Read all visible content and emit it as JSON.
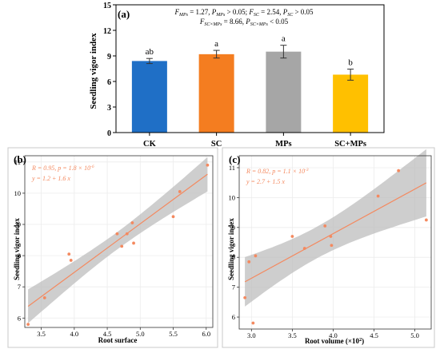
{
  "chart_data": [
    {
      "panel": "(a)",
      "type": "bar",
      "ylabel": "Seedling vigor index",
      "ylim": [
        0,
        15
      ],
      "yticks": [
        "0",
        "3",
        "6",
        "9",
        "12",
        "15"
      ],
      "categories": [
        "CK",
        "SC",
        "MPs",
        "SC+MPs"
      ],
      "values": [
        8.4,
        9.2,
        9.5,
        6.8
      ],
      "errors": [
        0.3,
        0.45,
        0.75,
        0.65
      ],
      "letters": [
        "ab",
        "a",
        "a",
        "b"
      ],
      "colors": [
        "#1f6fc6",
        "#f47d20",
        "#a6a6a6",
        "#ffc000"
      ],
      "stats_line1": "F_MPs = 1.27, P_MPs > 0.05; F_SC = 2.54, P_SC > 0.05",
      "stats_line2": "F_SC×MPs = 8.66, P_SC×MPs < 0.05"
    },
    {
      "panel": "(b)",
      "type": "scatter",
      "xlabel": "Root surface",
      "ylabel": "Seedling vigor index",
      "xlim": [
        3.25,
        6.1
      ],
      "ylim": [
        5.7,
        11.2
      ],
      "xticks": [
        "3.5",
        "4.0",
        "4.5",
        "5.0",
        "5.5",
        "6.0"
      ],
      "yticks": [
        "6",
        "7",
        "8",
        "9",
        "10",
        "11"
      ],
      "x": [
        3.3,
        3.55,
        3.92,
        3.95,
        4.65,
        4.72,
        4.8,
        4.88,
        4.9,
        5.5,
        5.6,
        6.02
      ],
      "y": [
        5.8,
        6.65,
        8.05,
        7.85,
        8.7,
        8.3,
        8.7,
        9.05,
        8.4,
        9.25,
        10.05,
        10.9
      ],
      "r_text": "R = 0.95, p = 1.8 × 10",
      "r_exp": "-6",
      "eq_text": "y = 1.2 + 1.6 x",
      "line_color": "#f4895f",
      "point_color": "#f4895f",
      "band_color": "#bdbdbd"
    },
    {
      "panel": "(c)",
      "type": "scatter",
      "xlabel": "Root volume (×10",
      "xlabel_exp": "2",
      "xlabel_end": ")",
      "ylabel": "Seedling vigor index",
      "xlim": [
        2.85,
        5.2
      ],
      "ylim": [
        5.6,
        11.4
      ],
      "xticks": [
        "3.0",
        "3.5",
        "4.0",
        "4.5",
        "5.0"
      ],
      "yticks": [
        "6",
        "7",
        "8",
        "9",
        "10",
        "11"
      ],
      "x": [
        2.92,
        2.97,
        3.02,
        3.05,
        3.5,
        3.65,
        3.9,
        3.97,
        3.98,
        4.55,
        4.8,
        5.14
      ],
      "y": [
        6.65,
        7.85,
        5.8,
        8.05,
        8.7,
        8.3,
        9.05,
        8.7,
        8.4,
        10.05,
        10.9,
        9.25
      ],
      "r_text": "R = 0.82, p = 1.1 × 10",
      "r_exp": "-3",
      "eq_text": "y = 2.7 + 1.5 x",
      "line_color": "#f4895f",
      "point_color": "#f4895f",
      "band_color": "#bdbdbd"
    }
  ]
}
